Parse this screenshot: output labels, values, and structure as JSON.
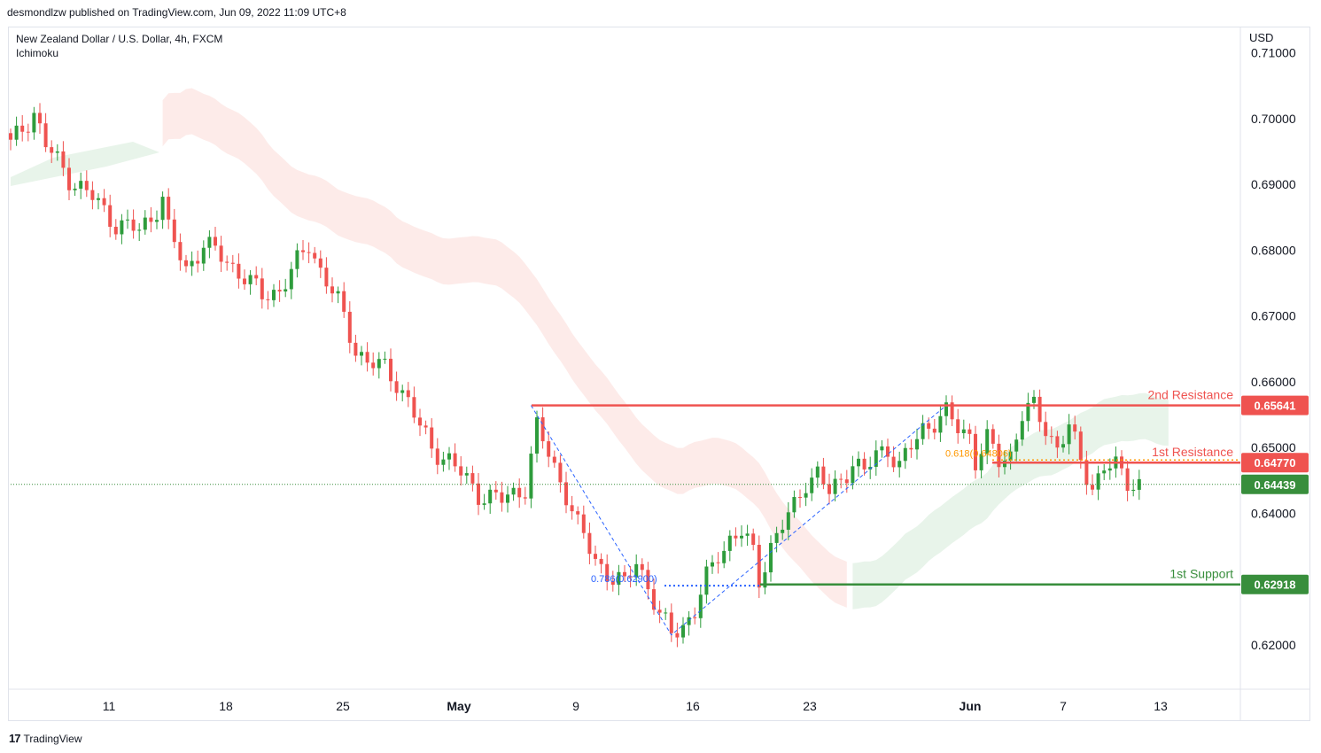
{
  "header": {
    "published": "desmondlzw published on TradingView.com, Jun 09, 2022 11:09 UTC+8"
  },
  "symbol": {
    "title": "New Zealand Dollar / U.S. Dollar, 4h, FXCM",
    "indicator": "Ichimoku"
  },
  "axis": {
    "currency": "USD"
  },
  "footer": {
    "brand": "TradingView",
    "logo": "17"
  },
  "colors": {
    "up": "#26a69a",
    "upBar": "#2e9c3c",
    "down": "#ef5350",
    "resistance": "#ef5350",
    "support": "#388e3c",
    "last": "#388e3c",
    "fib": "#2962ff"
  },
  "chart_data": {
    "type": "candlestick",
    "ylim": [
      0.615,
      0.7105
    ],
    "y_ticks": [
      "0.71000",
      "0.70000",
      "0.69000",
      "0.68000",
      "0.67000",
      "0.66000",
      "0.65000",
      "0.64000",
      "0.62000"
    ],
    "x_ticks": [
      {
        "label": "11",
        "bold": false
      },
      {
        "label": "18",
        "bold": false
      },
      {
        "label": "25",
        "bold": false
      },
      {
        "label": "May",
        "bold": true
      },
      {
        "label": "9",
        "bold": false
      },
      {
        "label": "16",
        "bold": false
      },
      {
        "label": "23",
        "bold": false
      },
      {
        "label": "Jun",
        "bold": true
      },
      {
        "label": "7",
        "bold": false
      },
      {
        "label": "13",
        "bold": false
      }
    ],
    "levels": [
      {
        "name": "2nd Resistance",
        "value": 0.65641,
        "label": "0.65641",
        "color": "#ef5350"
      },
      {
        "name": "1st Resistance",
        "value": 0.6477,
        "label": "0.64770",
        "color": "#ef5350"
      },
      {
        "name": "1st Support",
        "value": 0.62918,
        "label": "0.62918",
        "color": "#388e3c"
      }
    ],
    "last_price": {
      "value": 0.64439,
      "label": "0.64439"
    },
    "fib_labels": [
      "0.786(0.62900)",
      "0.618(0.64806)"
    ],
    "close_path": [
      [
        0,
        0.696
      ],
      [
        4,
        0.701
      ],
      [
        6,
        0.696
      ],
      [
        10,
        0.691
      ],
      [
        14,
        0.688
      ],
      [
        18,
        0.684
      ],
      [
        22,
        0.683
      ],
      [
        24,
        0.685
      ],
      [
        26,
        0.688
      ],
      [
        27,
        0.683
      ],
      [
        30,
        0.677
      ],
      [
        33,
        0.681
      ],
      [
        36,
        0.679
      ],
      [
        40,
        0.676
      ],
      [
        43,
        0.673
      ],
      [
        46,
        0.674
      ],
      [
        49,
        0.678
      ],
      [
        51,
        0.681
      ],
      [
        53,
        0.677
      ],
      [
        56,
        0.672
      ],
      [
        59,
        0.665
      ],
      [
        61,
        0.663
      ],
      [
        64,
        0.662
      ],
      [
        66,
        0.66
      ],
      [
        68,
        0.657
      ],
      [
        70,
        0.653
      ],
      [
        72,
        0.65
      ],
      [
        75,
        0.648
      ],
      [
        77,
        0.646
      ],
      [
        80,
        0.643
      ],
      [
        84,
        0.642
      ],
      [
        88,
        0.644
      ],
      [
        90,
        0.653
      ],
      [
        92,
        0.649
      ],
      [
        95,
        0.643
      ],
      [
        97,
        0.638
      ],
      [
        100,
        0.633
      ],
      [
        103,
        0.63
      ],
      [
        105,
        0.629
      ],
      [
        107,
        0.633
      ],
      [
        109,
        0.629
      ],
      [
        111,
        0.624
      ],
      [
        113,
        0.622
      ],
      [
        115,
        0.623
      ],
      [
        117,
        0.625
      ],
      [
        119,
        0.63
      ],
      [
        121,
        0.634
      ],
      [
        123,
        0.636
      ],
      [
        125,
        0.637
      ],
      [
        127,
        0.634
      ],
      [
        128,
        0.63
      ],
      [
        130,
        0.635
      ],
      [
        132,
        0.638
      ],
      [
        134,
        0.641
      ],
      [
        136,
        0.645
      ],
      [
        138,
        0.646
      ],
      [
        140,
        0.643
      ],
      [
        142,
        0.645
      ],
      [
        144,
        0.648
      ],
      [
        146,
        0.646
      ],
      [
        148,
        0.649
      ],
      [
        150,
        0.65
      ],
      [
        152,
        0.647
      ],
      [
        154,
        0.65
      ],
      [
        156,
        0.653
      ],
      [
        158,
        0.654
      ],
      [
        160,
        0.655
      ],
      [
        162,
        0.653
      ],
      [
        164,
        0.652
      ],
      [
        165,
        0.648
      ],
      [
        167,
        0.651
      ],
      [
        169,
        0.648
      ],
      [
        171,
        0.649
      ],
      [
        173,
        0.655
      ],
      [
        175,
        0.656
      ],
      [
        177,
        0.653
      ],
      [
        179,
        0.65
      ],
      [
        181,
        0.653
      ],
      [
        183,
        0.648
      ],
      [
        185,
        0.644
      ],
      [
        187,
        0.647
      ],
      [
        189,
        0.647
      ],
      [
        191,
        0.645
      ],
      [
        193,
        0.6445
      ]
    ]
  }
}
